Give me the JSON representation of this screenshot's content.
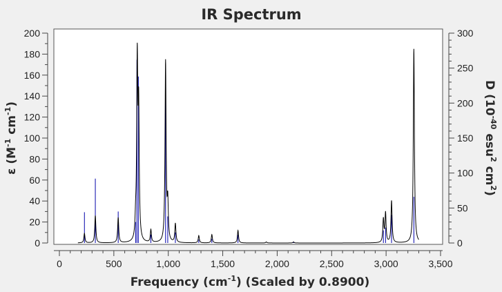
{
  "chart_data": {
    "type": "line",
    "title": "IR Spectrum",
    "xlabel": {
      "main": "Frequency (cm",
      "sup": "-1",
      "tail": ") (Scaled by 0.8900)"
    },
    "ylabel_left": {
      "main": "ε  (M",
      "sup1": "-1",
      "mid": " cm",
      "sup2": "-1",
      "tail": ")"
    },
    "ylabel_right": {
      "main": "D (10",
      "sup1": "-40",
      "mid": " esu",
      "sup2": "2",
      "mid2": " cm",
      "sup3": "2",
      "tail": ")"
    },
    "xlim": [
      0,
      3500
    ],
    "ylim_left": [
      0,
      200
    ],
    "ylim_right": [
      0,
      300
    ],
    "x_ticks": [
      0,
      500,
      1000,
      1500,
      2000,
      2500,
      3000,
      3500
    ],
    "x_tick_labels": [
      "0",
      "500",
      "1,000",
      "1,500",
      "2,000",
      "2,500",
      "3,000",
      "3,500"
    ],
    "y_left_ticks": [
      0,
      20,
      40,
      60,
      80,
      100,
      120,
      140,
      160,
      180,
      200
    ],
    "y_left_tick_labels": [
      "0",
      "20",
      "40",
      "60",
      "80",
      "100",
      "120",
      "140",
      "160",
      "180",
      "200"
    ],
    "y_right_ticks": [
      0,
      50,
      100,
      150,
      200,
      250,
      300
    ],
    "y_right_tick_labels": [
      "0",
      "50",
      "100",
      "150",
      "200",
      "250",
      "300"
    ],
    "grid": false,
    "colors": {
      "spectrum": "#000000",
      "sticks": "#0000aa",
      "plot_background": "#ffffff",
      "page_background": "#f0f0f0"
    },
    "series": [
      {
        "type": "line",
        "peak_width": 6,
        "peaks": [
          {
            "x": 230,
            "y": 9
          },
          {
            "x": 330,
            "y": 26
          },
          {
            "x": 540,
            "y": 24
          },
          {
            "x": 700,
            "y": 14
          },
          {
            "x": 715,
            "y": 168
          },
          {
            "x": 728,
            "y": 118
          },
          {
            "x": 840,
            "y": 12
          },
          {
            "x": 975,
            "y": 172
          },
          {
            "x": 995,
            "y": 35
          },
          {
            "x": 1065,
            "y": 18
          },
          {
            "x": 1280,
            "y": 7
          },
          {
            "x": 1400,
            "y": 8
          },
          {
            "x": 1640,
            "y": 12
          },
          {
            "x": 1900,
            "y": 1
          },
          {
            "x": 2150,
            "y": 1
          },
          {
            "x": 2975,
            "y": 22
          },
          {
            "x": 2995,
            "y": 28
          },
          {
            "x": 3050,
            "y": 40
          },
          {
            "x": 3255,
            "y": 185
          }
        ]
      },
      {
        "type": "stick",
        "axis": "right",
        "sticks": [
          {
            "x": 230,
            "y": 44
          },
          {
            "x": 330,
            "y": 92
          },
          {
            "x": 540,
            "y": 45
          },
          {
            "x": 700,
            "y": 30
          },
          {
            "x": 712,
            "y": 262
          },
          {
            "x": 725,
            "y": 238
          },
          {
            "x": 840,
            "y": 12
          },
          {
            "x": 975,
            "y": 205
          },
          {
            "x": 995,
            "y": 38
          },
          {
            "x": 1065,
            "y": 15
          },
          {
            "x": 1280,
            "y": 5
          },
          {
            "x": 1400,
            "y": 6
          },
          {
            "x": 1640,
            "y": 12
          },
          {
            "x": 2150,
            "y": 2
          },
          {
            "x": 2975,
            "y": 18
          },
          {
            "x": 2995,
            "y": 22
          },
          {
            "x": 3050,
            "y": 40
          },
          {
            "x": 3255,
            "y": 66
          }
        ]
      }
    ]
  }
}
